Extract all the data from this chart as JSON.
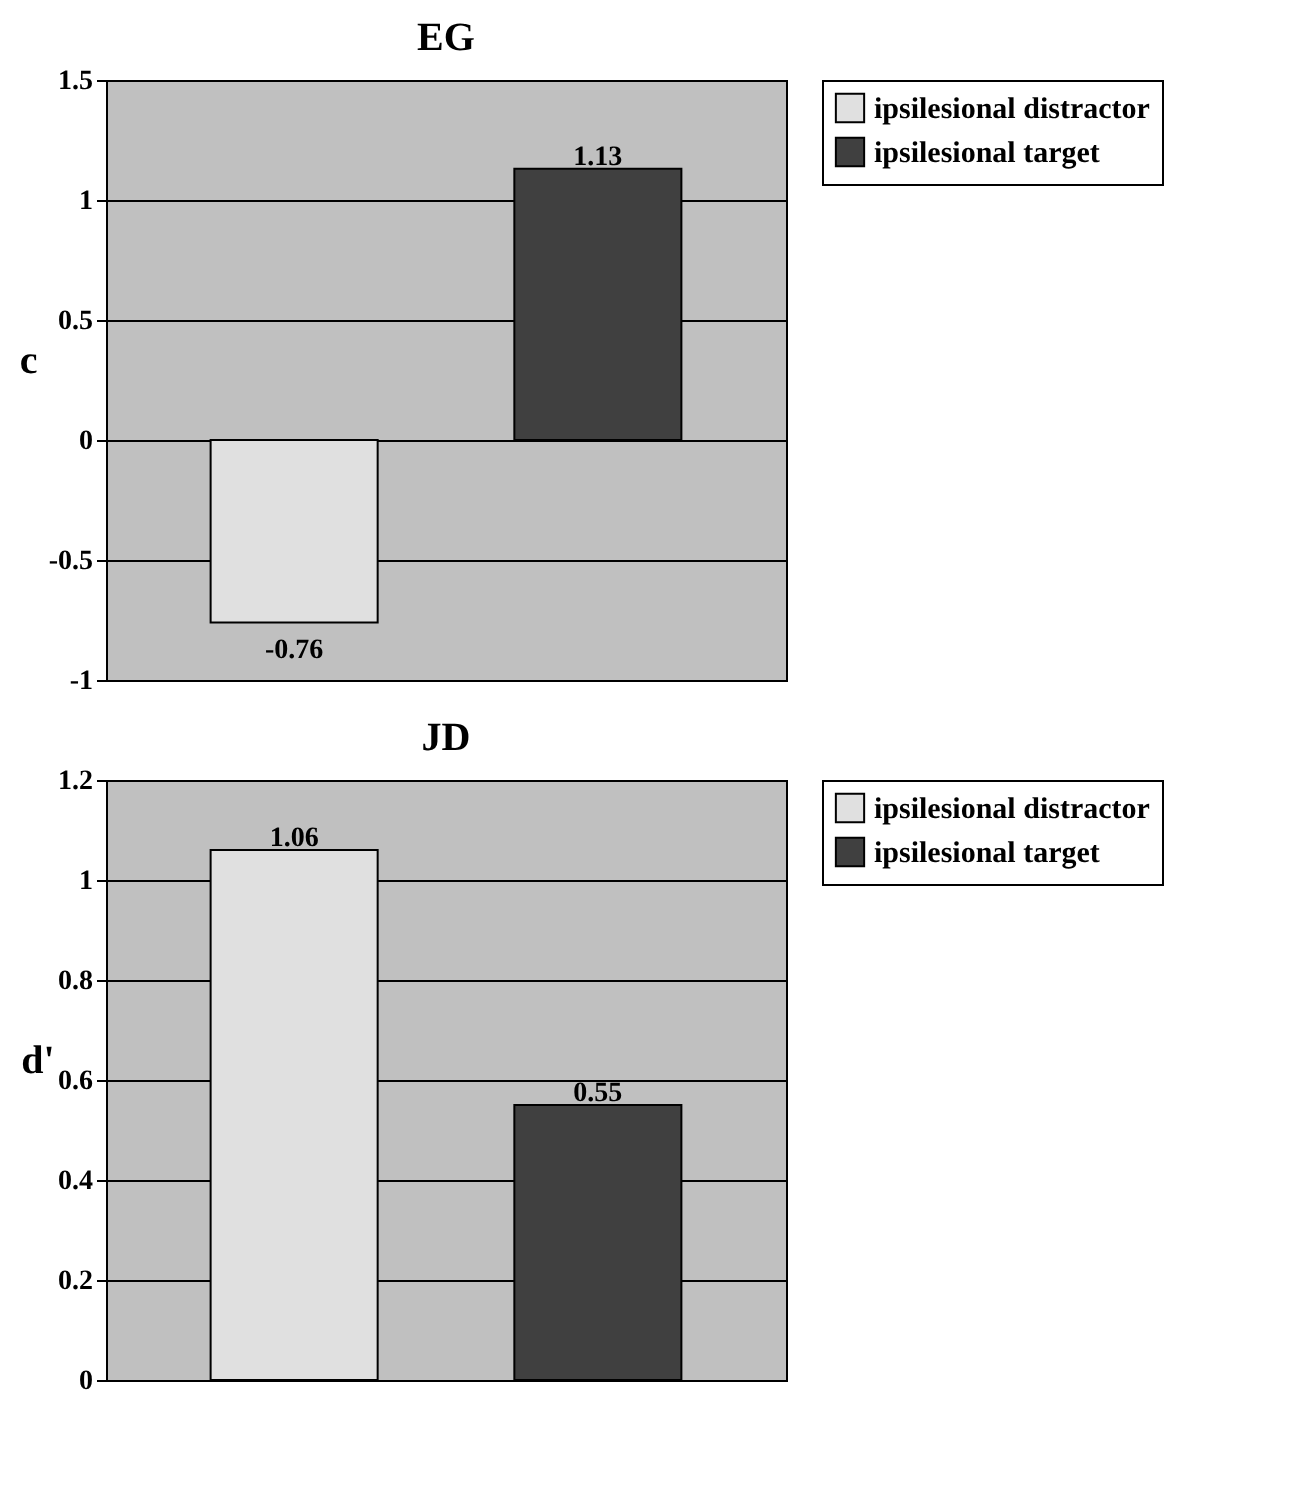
{
  "chart_data": [
    {
      "type": "bar",
      "title": "EG",
      "ylabel": "c",
      "categories": [
        null
      ],
      "series": [
        {
          "name": "ipsilesional distractor",
          "color": "#e0e0e0",
          "values": [
            -0.76
          ]
        },
        {
          "name": "ipsilesional target",
          "color": "#404040",
          "values": [
            1.13
          ]
        }
      ],
      "ylim": [
        -1,
        1.5
      ],
      "yticks": [
        -1,
        -0.5,
        0,
        0.5,
        1,
        1.5
      ],
      "grid": "y",
      "legend": "right",
      "data_labels": true
    },
    {
      "type": "bar",
      "title": "JD",
      "ylabel": "d'",
      "categories": [
        null
      ],
      "series": [
        {
          "name": "ipsilesional distractor",
          "color": "#e0e0e0",
          "values": [
            1.06
          ]
        },
        {
          "name": "ipsilesional target",
          "color": "#404040",
          "values": [
            0.55
          ]
        }
      ],
      "ylim": [
        0,
        1.2
      ],
      "yticks": [
        0,
        0.2,
        0.4,
        0.6,
        0.8,
        1,
        1.2
      ],
      "grid": "y",
      "legend": "right",
      "data_labels": true
    }
  ]
}
